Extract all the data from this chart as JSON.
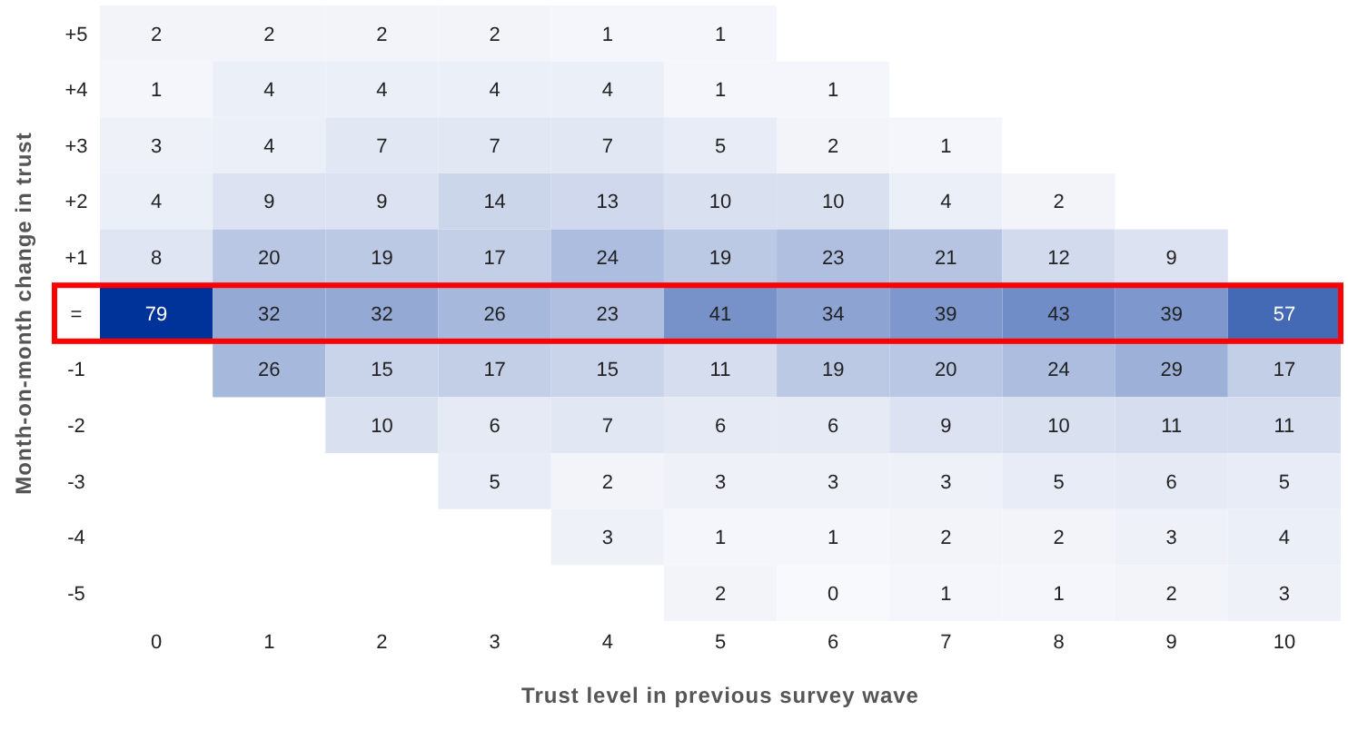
{
  "chart_data": {
    "type": "heatmap",
    "data_labels": true,
    "xlabel": "Trust level in previous survey wave",
    "ylabel": "Month-on-month change in trust",
    "categories": [
      "0",
      "1",
      "2",
      "3",
      "4",
      "5",
      "6",
      "7",
      "8",
      "9",
      "10"
    ],
    "y_categories": [
      "+5",
      "+4",
      "+3",
      "+2",
      "+1",
      "=",
      "-1",
      "-2",
      "-3",
      "-4",
      "-5"
    ],
    "cells": [
      [
        2,
        2,
        2,
        2,
        1,
        1,
        null,
        null,
        null,
        null,
        null
      ],
      [
        1,
        4,
        4,
        4,
        4,
        1,
        1,
        null,
        null,
        null,
        null
      ],
      [
        3,
        4,
        7,
        7,
        7,
        5,
        2,
        1,
        null,
        null,
        null
      ],
      [
        4,
        9,
        9,
        14,
        13,
        10,
        10,
        4,
        2,
        null,
        null
      ],
      [
        8,
        20,
        19,
        17,
        24,
        19,
        23,
        21,
        12,
        9,
        null
      ],
      [
        79,
        32,
        32,
        26,
        23,
        41,
        34,
        39,
        43,
        39,
        57
      ],
      [
        null,
        26,
        15,
        17,
        15,
        11,
        19,
        20,
        24,
        29,
        17
      ],
      [
        null,
        null,
        10,
        6,
        7,
        6,
        6,
        9,
        10,
        11,
        11
      ],
      [
        null,
        null,
        null,
        5,
        2,
        3,
        3,
        3,
        5,
        6,
        5
      ],
      [
        null,
        null,
        null,
        null,
        3,
        1,
        1,
        2,
        2,
        3,
        4
      ],
      [
        null,
        null,
        null,
        null,
        null,
        2,
        0,
        1,
        1,
        2,
        3
      ]
    ]
  }
}
